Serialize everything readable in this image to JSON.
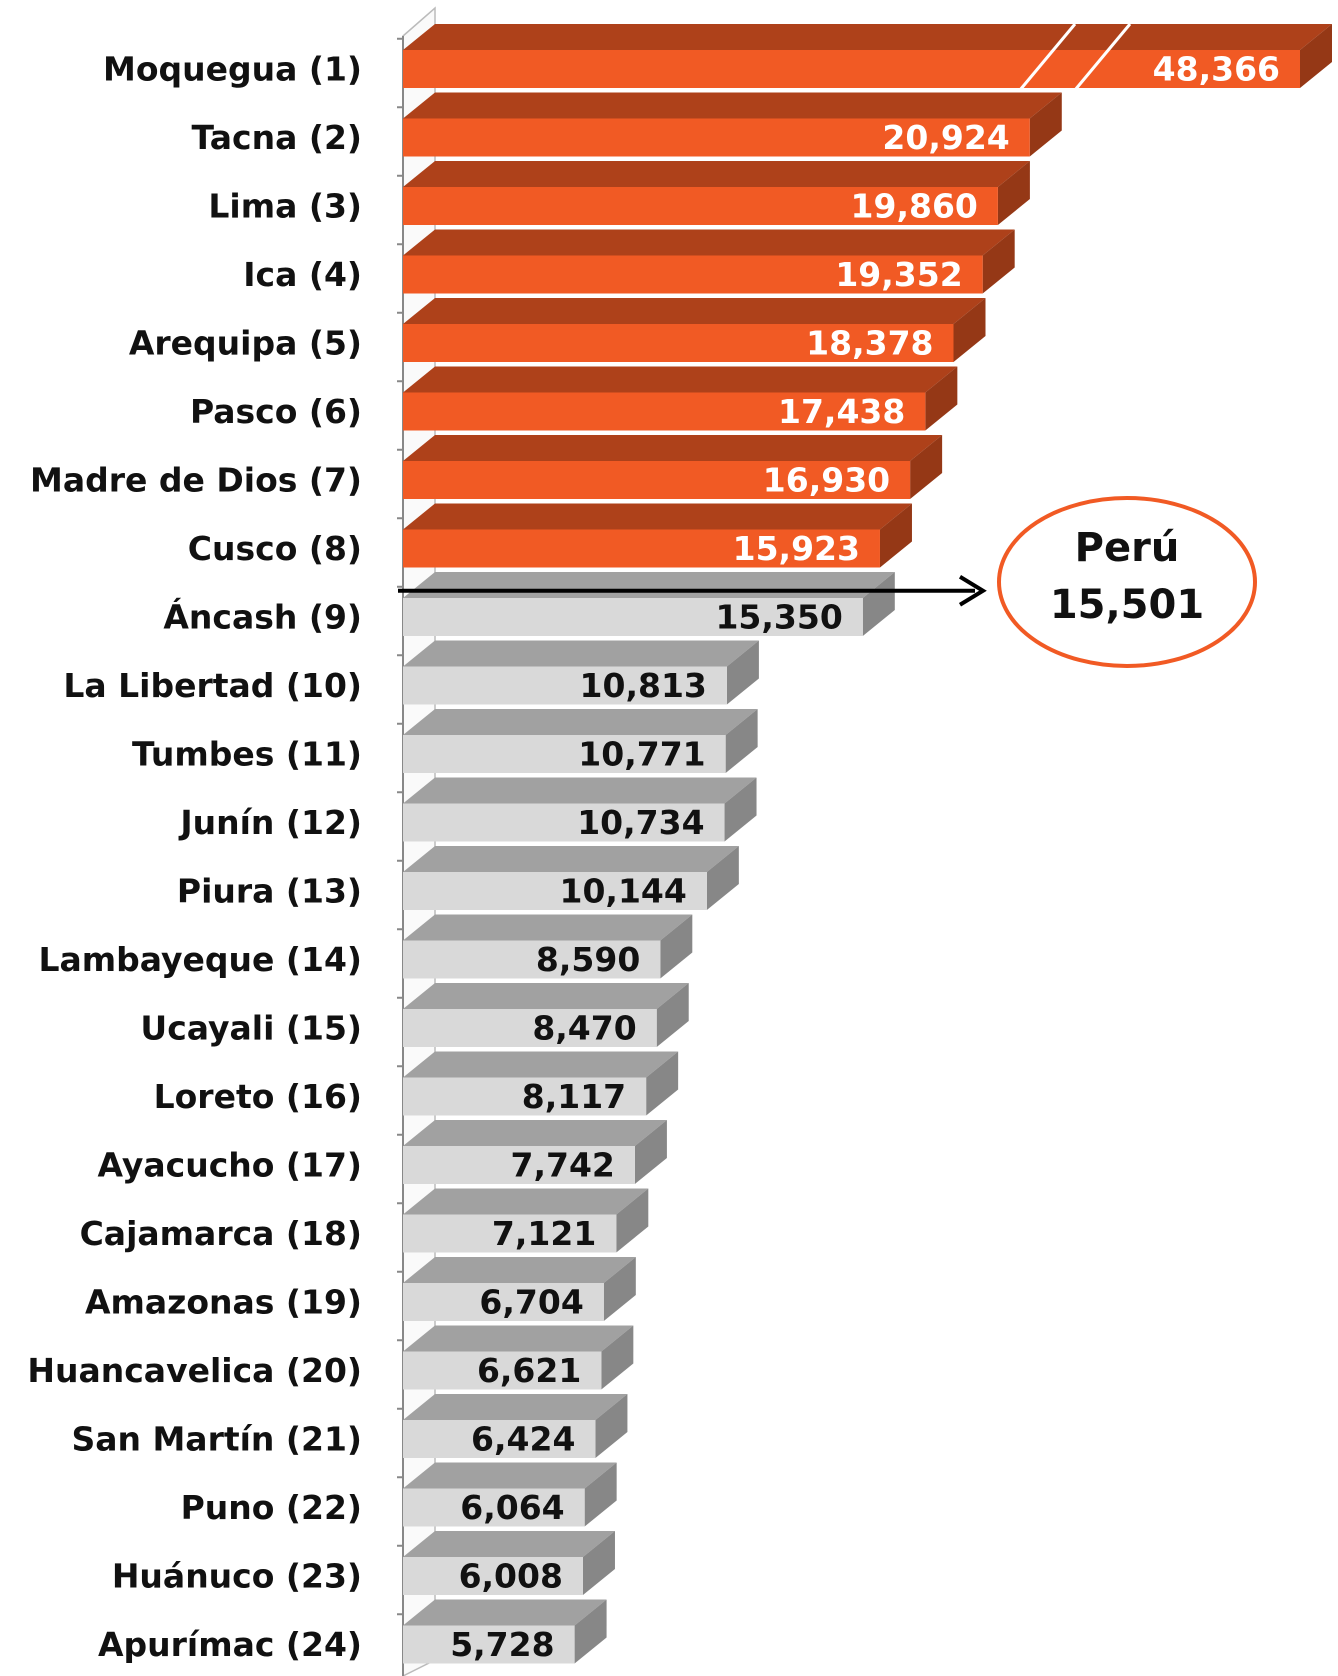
{
  "chart_data": {
    "type": "bar3d",
    "categories": [
      "Moquegua (1)",
      "Tacna (2)",
      "Lima (3)",
      "Ica (4)",
      "Arequipa (5)",
      "Pasco (6)",
      "Madre de Dios (7)",
      "Cusco (8)",
      "Áncash (9)",
      "La Libertad (10)",
      "Tumbes (11)",
      "Junín (12)",
      "Piura (13)",
      "Lambayeque (14)",
      "Ucayali (15)",
      "Loreto (16)",
      "Ayacucho (17)",
      "Cajamarca (18)",
      "Amazonas (19)",
      "Huancavelica (20)",
      "San Martín (21)",
      "Puno (22)",
      "Huánuco (23)",
      "Apurímac (24)"
    ],
    "values": [
      48366,
      20924,
      19860,
      19352,
      18378,
      17438,
      16930,
      15923,
      15350,
      10813,
      10771,
      10734,
      10144,
      8590,
      8470,
      8117,
      7742,
      7121,
      6704,
      6621,
      6424,
      6064,
      6008,
      5728
    ],
    "value_labels": [
      "48,366",
      "20,924",
      "19,860",
      "19,352",
      "18,378",
      "17,438",
      "16,930",
      "15,923",
      "15,350",
      "10,813",
      "10,771",
      "10,734",
      "10,144",
      "8,590",
      "8,470",
      "8,117",
      "7,742",
      "7,121",
      "6,704",
      "6,621",
      "6,424",
      "6,064",
      "6,008",
      "5,728"
    ],
    "xlim": [
      0,
      22000
    ],
    "color_above": "#f15a24",
    "color_below": "#d9d9d9",
    "reference": {
      "label": "Perú",
      "value": 15501,
      "value_label": "15,501",
      "color": "#f15a24"
    }
  }
}
